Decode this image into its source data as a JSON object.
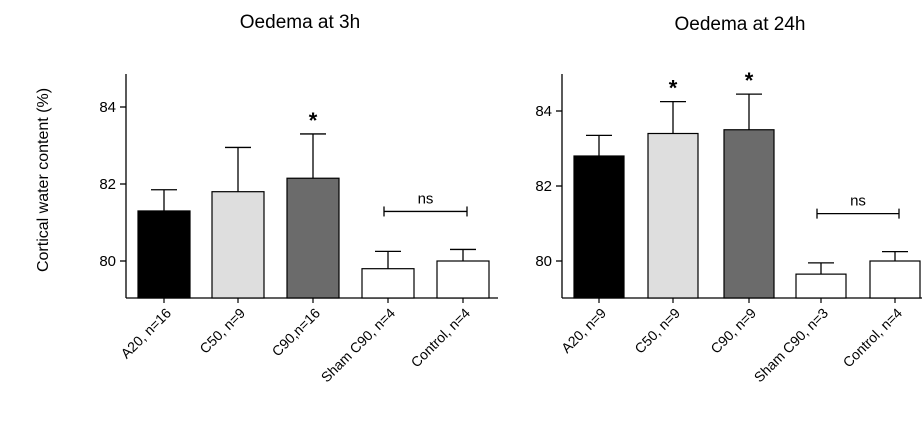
{
  "figure": {
    "ylabel": "Cortical water content (%)"
  },
  "chart_data": [
    {
      "type": "bar",
      "title": "Oedema at 3h",
      "ylabel": "Cortical water content (%)",
      "ylim": [
        79,
        85
      ],
      "yticks": [
        80,
        82,
        84
      ],
      "categories": [
        "A20, n=16",
        "C50, n=9",
        "C90,n=16",
        "Sham C90, n=4",
        "Control, n=4"
      ],
      "values": [
        81.3,
        81.8,
        82.15,
        79.8,
        80.0
      ],
      "errors": [
        0.55,
        1.15,
        1.15,
        0.45,
        0.3
      ],
      "colors": [
        "#000000",
        "#dedede",
        "#6b6b6b",
        "#ffffff",
        "#ffffff"
      ],
      "significance": [
        {
          "category": "C90,n=16",
          "label": "*"
        },
        {
          "bracket": [
            "Sham C90, n=4",
            "Control, n=4"
          ],
          "label": "ns"
        }
      ],
      "grid": false
    },
    {
      "type": "bar",
      "title": "Oedema at 24h",
      "ylabel": "Cortical water content (%)",
      "ylim": [
        79,
        85
      ],
      "yticks": [
        80,
        82,
        84
      ],
      "categories": [
        "A20, n=9",
        "C50, n=9",
        "C90, n=9",
        "Sham C90, n=3",
        "Control, n=4"
      ],
      "values": [
        82.8,
        83.4,
        83.5,
        79.65,
        80.0
      ],
      "errors": [
        0.55,
        0.85,
        0.95,
        0.3,
        0.25
      ],
      "colors": [
        "#000000",
        "#dedede",
        "#6b6b6b",
        "#ffffff",
        "#ffffff"
      ],
      "significance": [
        {
          "category": "C50, n=9",
          "label": "*"
        },
        {
          "category": "C90, n=9",
          "label": "*"
        },
        {
          "bracket": [
            "Sham C90, n=3",
            "Control, n=4"
          ],
          "label": "ns"
        }
      ],
      "grid": false
    }
  ]
}
